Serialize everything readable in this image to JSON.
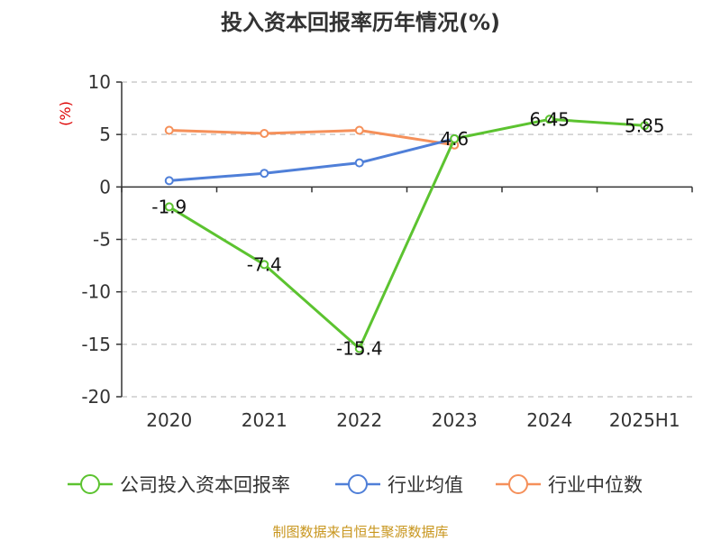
{
  "chart_data": {
    "type": "line",
    "title": "投入资本回报率历年情况(%)",
    "unit": "(%)",
    "categories": [
      "2020",
      "2021",
      "2022",
      "2023",
      "2024",
      "2025H1"
    ],
    "ylim": [
      -20,
      10
    ],
    "yticks": [
      10,
      5,
      0,
      -5,
      -10,
      -15,
      -20
    ],
    "grid": true,
    "legend_position": "bottom",
    "series": [
      {
        "name": "公司投入资本回报率",
        "color": "#5cc330",
        "values": [
          -1.9,
          -7.4,
          -15.4,
          4.6,
          6.45,
          5.85
        ],
        "labels": [
          "-1.9",
          "-7.4",
          "-15.4",
          "4.6",
          "6.45",
          "5.85"
        ]
      },
      {
        "name": "行业均值",
        "color": "#4f7fd8",
        "values": [
          0.6,
          1.3,
          2.3,
          4.6,
          null,
          null
        ]
      },
      {
        "name": "行业中位数",
        "color": "#f5905a",
        "values": [
          5.4,
          5.1,
          5.4,
          4.0,
          null,
          null
        ]
      }
    ],
    "source": "制图数据来自恒生聚源数据库"
  }
}
